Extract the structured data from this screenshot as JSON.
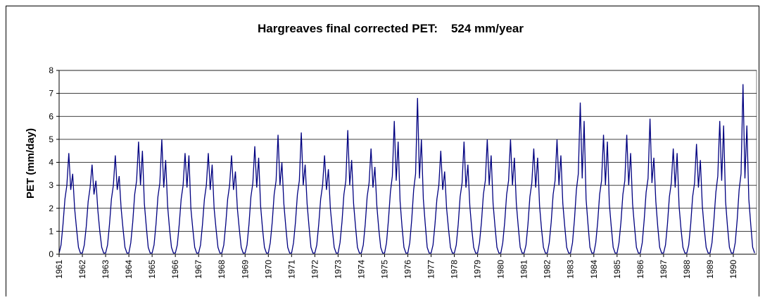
{
  "chart_data": {
    "type": "line",
    "title": "Hargreaves final corrected PET:    524 mm/year",
    "y_label": "PET (mm/day)",
    "xlim": [
      1961,
      1991
    ],
    "xticks": [
      1961,
      1962,
      1963,
      1964,
      1965,
      1966,
      1967,
      1968,
      1969,
      1970,
      1971,
      1972,
      1973,
      1974,
      1975,
      1976,
      1977,
      1978,
      1979,
      1980,
      1981,
      1982,
      1983,
      1984,
      1985,
      1986,
      1987,
      1988,
      1989,
      1990
    ],
    "ylim": [
      0,
      8
    ],
    "yticks": [
      0,
      1,
      2,
      3,
      4,
      5,
      6,
      7,
      8
    ],
    "grid": true,
    "x": [
      1961,
      1961.083,
      1961.167,
      1961.25,
      1961.333,
      1961.417,
      1961.5,
      1961.583,
      1961.667,
      1961.75,
      1961.833,
      1961.917,
      1962,
      1962.083,
      1962.167,
      1962.25,
      1962.333,
      1962.417,
      1962.5,
      1962.583,
      1962.667,
      1962.75,
      1962.833,
      1962.917,
      1963,
      1963.083,
      1963.167,
      1963.25,
      1963.333,
      1963.417,
      1963.5,
      1963.583,
      1963.667,
      1963.75,
      1963.833,
      1963.917,
      1964,
      1964.083,
      1964.167,
      1964.25,
      1964.333,
      1964.417,
      1964.5,
      1964.583,
      1964.667,
      1964.75,
      1964.833,
      1964.917,
      1965,
      1965.083,
      1965.167,
      1965.25,
      1965.333,
      1965.417,
      1965.5,
      1965.583,
      1965.667,
      1965.75,
      1965.833,
      1965.917,
      1966,
      1966.083,
      1966.167,
      1966.25,
      1966.333,
      1966.417,
      1966.5,
      1966.583,
      1966.667,
      1966.75,
      1966.833,
      1966.917,
      1967,
      1967.083,
      1967.167,
      1967.25,
      1967.333,
      1967.417,
      1967.5,
      1967.583,
      1967.667,
      1967.75,
      1967.833,
      1967.917,
      1968,
      1968.083,
      1968.167,
      1968.25,
      1968.333,
      1968.417,
      1968.5,
      1968.583,
      1968.667,
      1968.75,
      1968.833,
      1968.917,
      1969,
      1969.083,
      1969.167,
      1969.25,
      1969.333,
      1969.417,
      1969.5,
      1969.583,
      1969.667,
      1969.75,
      1969.833,
      1969.917,
      1970,
      1970.083,
      1970.167,
      1970.25,
      1970.333,
      1970.417,
      1970.5,
      1970.583,
      1970.667,
      1970.75,
      1970.833,
      1970.917,
      1971,
      1971.083,
      1971.167,
      1971.25,
      1971.333,
      1971.417,
      1971.5,
      1971.583,
      1971.667,
      1971.75,
      1971.833,
      1971.917,
      1972,
      1972.083,
      1972.167,
      1972.25,
      1972.333,
      1972.417,
      1972.5,
      1972.583,
      1972.667,
      1972.75,
      1972.833,
      1972.917,
      1973,
      1973.083,
      1973.167,
      1973.25,
      1973.333,
      1973.417,
      1973.5,
      1973.583,
      1973.667,
      1973.75,
      1973.833,
      1973.917,
      1974,
      1974.083,
      1974.167,
      1974.25,
      1974.333,
      1974.417,
      1974.5,
      1974.583,
      1974.667,
      1974.75,
      1974.833,
      1974.917,
      1975,
      1975.083,
      1975.167,
      1975.25,
      1975.333,
      1975.417,
      1975.5,
      1975.583,
      1975.667,
      1975.75,
      1975.833,
      1975.917,
      1976,
      1976.083,
      1976.167,
      1976.25,
      1976.333,
      1976.417,
      1976.5,
      1976.583,
      1976.667,
      1976.75,
      1976.833,
      1976.917,
      1977,
      1977.083,
      1977.167,
      1977.25,
      1977.333,
      1977.417,
      1977.5,
      1977.583,
      1977.667,
      1977.75,
      1977.833,
      1977.917,
      1978,
      1978.083,
      1978.167,
      1978.25,
      1978.333,
      1978.417,
      1978.5,
      1978.583,
      1978.667,
      1978.75,
      1978.833,
      1978.917,
      1979,
      1979.083,
      1979.167,
      1979.25,
      1979.333,
      1979.417,
      1979.5,
      1979.583,
      1979.667,
      1979.75,
      1979.833,
      1979.917,
      1980,
      1980.083,
      1980.167,
      1980.25,
      1980.333,
      1980.417,
      1980.5,
      1980.583,
      1980.667,
      1980.75,
      1980.833,
      1980.917,
      1981,
      1981.083,
      1981.167,
      1981.25,
      1981.333,
      1981.417,
      1981.5,
      1981.583,
      1981.667,
      1981.75,
      1981.833,
      1981.917,
      1982,
      1982.083,
      1982.167,
      1982.25,
      1982.333,
      1982.417,
      1982.5,
      1982.583,
      1982.667,
      1982.75,
      1982.833,
      1982.917,
      1983,
      1983.083,
      1983.167,
      1983.25,
      1983.333,
      1983.417,
      1983.5,
      1983.583,
      1983.667,
      1983.75,
      1983.833,
      1983.917,
      1984,
      1984.083,
      1984.167,
      1984.25,
      1984.333,
      1984.417,
      1984.5,
      1984.583,
      1984.667,
      1984.75,
      1984.833,
      1984.917,
      1985,
      1985.083,
      1985.167,
      1985.25,
      1985.333,
      1985.417,
      1985.5,
      1985.583,
      1985.667,
      1985.75,
      1985.833,
      1985.917,
      1986,
      1986.083,
      1986.167,
      1986.25,
      1986.333,
      1986.417,
      1986.5,
      1986.583,
      1986.667,
      1986.75,
      1986.833,
      1986.917,
      1987,
      1987.083,
      1987.167,
      1987.25,
      1987.333,
      1987.417,
      1987.5,
      1987.583,
      1987.667,
      1987.75,
      1987.833,
      1987.917,
      1988,
      1988.083,
      1988.167,
      1988.25,
      1988.333,
      1988.417,
      1988.5,
      1988.583,
      1988.667,
      1988.75,
      1988.833,
      1988.917,
      1989,
      1989.083,
      1989.167,
      1989.25,
      1989.333,
      1989.417,
      1989.5,
      1989.583,
      1989.667,
      1989.75,
      1989.833,
      1989.917,
      1990,
      1990.083,
      1990.167,
      1990.25,
      1990.333,
      1990.417,
      1990.5,
      1990.583,
      1990.667,
      1990.75,
      1990.833,
      1990.917
    ],
    "series": [
      {
        "color": "#000080",
        "values": [
          0.05,
          0.4,
          1.3,
          2.4,
          3.0,
          4.4,
          2.8,
          3.5,
          2.0,
          1.1,
          0.3,
          0.05,
          0.05,
          0.4,
          1.2,
          2.3,
          2.9,
          3.9,
          2.6,
          3.2,
          1.9,
          1.0,
          0.3,
          0.05,
          0.05,
          0.4,
          1.3,
          2.4,
          3.0,
          4.3,
          2.8,
          3.4,
          2.0,
          1.1,
          0.3,
          0.05,
          0.05,
          0.5,
          1.4,
          2.6,
          3.2,
          4.9,
          3.0,
          4.5,
          2.2,
          1.2,
          0.3,
          0.05,
          0.05,
          0.4,
          1.3,
          2.5,
          3.1,
          5.0,
          2.9,
          4.1,
          2.1,
          1.1,
          0.3,
          0.05,
          0.05,
          0.4,
          1.3,
          2.4,
          3.0,
          4.4,
          2.9,
          4.3,
          2.0,
          1.1,
          0.3,
          0.05,
          0.05,
          0.4,
          1.3,
          2.4,
          3.0,
          4.4,
          2.8,
          3.9,
          2.0,
          1.1,
          0.3,
          0.05,
          0.05,
          0.4,
          1.3,
          2.4,
          3.0,
          4.3,
          2.8,
          3.6,
          2.0,
          1.1,
          0.3,
          0.05,
          0.05,
          0.4,
          1.3,
          2.5,
          3.1,
          4.7,
          2.9,
          4.2,
          2.1,
          1.1,
          0.3,
          0.05,
          0.05,
          0.5,
          1.4,
          2.6,
          3.2,
          5.2,
          3.0,
          4.0,
          2.2,
          1.2,
          0.3,
          0.05,
          0.05,
          0.5,
          1.4,
          2.6,
          3.2,
          5.3,
          3.0,
          3.9,
          2.2,
          1.2,
          0.3,
          0.05,
          0.05,
          0.4,
          1.3,
          2.4,
          3.0,
          4.3,
          2.8,
          3.7,
          2.0,
          1.1,
          0.3,
          0.05,
          0.05,
          0.5,
          1.4,
          2.6,
          3.2,
          5.4,
          3.0,
          4.1,
          2.2,
          1.2,
          0.3,
          0.05,
          0.05,
          0.4,
          1.3,
          2.5,
          3.1,
          4.6,
          2.9,
          3.8,
          2.1,
          1.1,
          0.3,
          0.05,
          0.05,
          0.5,
          1.5,
          2.7,
          3.4,
          5.8,
          3.2,
          4.9,
          2.3,
          1.2,
          0.3,
          0.05,
          0.05,
          0.5,
          1.5,
          2.8,
          3.5,
          6.8,
          3.3,
          5.0,
          2.4,
          1.3,
          0.3,
          0.05,
          0.05,
          0.4,
          1.3,
          2.4,
          3.0,
          4.5,
          2.8,
          3.6,
          2.0,
          1.1,
          0.3,
          0.05,
          0.05,
          0.4,
          1.3,
          2.5,
          3.1,
          4.9,
          2.9,
          3.9,
          2.1,
          1.1,
          0.3,
          0.05,
          0.05,
          0.5,
          1.4,
          2.6,
          3.2,
          5.0,
          3.0,
          4.3,
          2.2,
          1.2,
          0.3,
          0.05,
          0.05,
          0.5,
          1.4,
          2.6,
          3.2,
          5.0,
          3.0,
          4.2,
          2.2,
          1.2,
          0.3,
          0.05,
          0.05,
          0.4,
          1.3,
          2.5,
          3.1,
          4.6,
          2.9,
          4.2,
          2.1,
          1.1,
          0.3,
          0.05,
          0.05,
          0.5,
          1.4,
          2.6,
          3.2,
          5.0,
          3.0,
          4.3,
          2.2,
          1.2,
          0.3,
          0.05,
          0.05,
          0.5,
          1.5,
          2.8,
          3.5,
          6.6,
          3.3,
          5.8,
          2.4,
          1.3,
          0.3,
          0.05,
          0.05,
          0.5,
          1.4,
          2.6,
          3.2,
          5.2,
          3.0,
          4.9,
          2.2,
          1.2,
          0.3,
          0.05,
          0.05,
          0.5,
          1.4,
          2.6,
          3.2,
          5.2,
          3.0,
          4.4,
          2.2,
          1.2,
          0.3,
          0.05,
          0.05,
          0.5,
          1.5,
          2.7,
          3.3,
          5.9,
          3.1,
          4.2,
          2.3,
          1.2,
          0.3,
          0.05,
          0.05,
          0.4,
          1.3,
          2.5,
          3.1,
          4.6,
          2.9,
          4.4,
          2.1,
          1.1,
          0.3,
          0.05,
          0.05,
          0.4,
          1.3,
          2.5,
          3.1,
          4.8,
          2.9,
          4.1,
          2.1,
          1.1,
          0.3,
          0.05,
          0.05,
          0.5,
          1.5,
          2.7,
          3.4,
          5.8,
          3.2,
          5.6,
          2.3,
          1.2,
          0.3,
          0.05,
          0.05,
          0.5,
          1.5,
          2.8,
          3.5,
          7.4,
          3.3,
          5.6,
          2.4,
          1.3,
          0.3,
          0.05
        ]
      }
    ]
  }
}
